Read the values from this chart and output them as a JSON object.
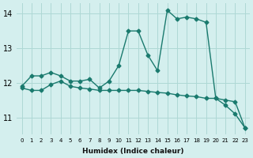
{
  "xlabel": "Humidex (Indice chaleur)",
  "background_color": "#d4efee",
  "grid_color": "#aed8d5",
  "line_color": "#1a7a6e",
  "xlim": [
    -0.5,
    23.5
  ],
  "ylim": [
    10.5,
    14.3
  ],
  "yticks": [
    11,
    12,
    13,
    14
  ],
  "xticks": [
    0,
    1,
    2,
    3,
    4,
    5,
    6,
    7,
    8,
    9,
    10,
    11,
    12,
    13,
    14,
    15,
    16,
    17,
    18,
    19,
    20,
    21,
    22,
    23
  ],
  "series1_x": [
    0,
    1,
    2,
    3,
    4,
    5,
    6,
    7,
    8,
    9,
    10,
    11,
    12,
    13,
    14,
    15,
    16,
    17,
    18,
    19,
    20,
    21,
    22,
    23
  ],
  "series1_y": [
    11.9,
    12.2,
    12.2,
    12.3,
    12.2,
    12.05,
    12.05,
    12.1,
    11.85,
    12.05,
    12.5,
    13.5,
    13.5,
    12.8,
    12.35,
    14.1,
    13.85,
    13.9,
    13.85,
    13.75,
    11.55,
    11.35,
    11.1,
    10.7
  ],
  "series2_x": [
    0,
    1,
    2,
    3,
    4,
    5,
    6,
    7,
    8,
    9,
    10,
    11,
    12,
    13,
    14,
    15,
    16,
    17,
    18,
    19,
    20,
    21,
    22,
    23
  ],
  "series2_y": [
    11.85,
    11.78,
    11.78,
    11.95,
    12.05,
    11.9,
    11.85,
    11.82,
    11.78,
    11.78,
    11.78,
    11.78,
    11.78,
    11.75,
    11.72,
    11.7,
    11.65,
    11.62,
    11.6,
    11.55,
    11.55,
    11.5,
    11.45,
    10.7
  ],
  "marker_size": 2.5,
  "line_width": 1.0
}
